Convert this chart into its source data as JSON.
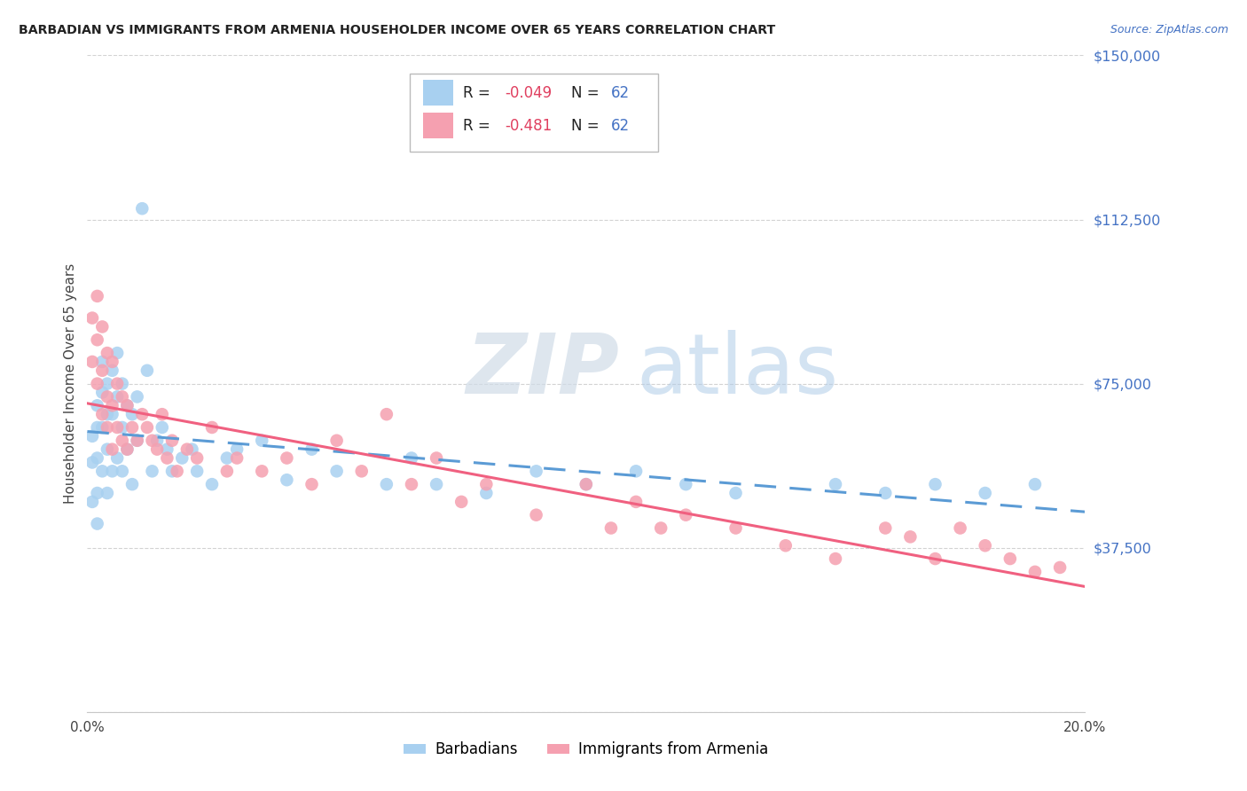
{
  "title": "BARBADIAN VS IMMIGRANTS FROM ARMENIA HOUSEHOLDER INCOME OVER 65 YEARS CORRELATION CHART",
  "source": "Source: ZipAtlas.com",
  "ylabel": "Householder Income Over 65 years",
  "xlim": [
    0.0,
    0.2
  ],
  "ylim": [
    0,
    150000
  ],
  "yticks": [
    0,
    37500,
    75000,
    112500,
    150000
  ],
  "ytick_labels": [
    "",
    "$37,500",
    "$75,000",
    "$112,500",
    "$150,000"
  ],
  "barbadian_color": "#a8d0f0",
  "armenia_color": "#f5a0b0",
  "barbadian_line_color": "#5b9bd5",
  "armenia_line_color": "#f06080",
  "axis_color": "#4472c4",
  "background_color": "#ffffff",
  "grid_color": "#c8c8c8",
  "watermark_zip": "ZIP",
  "watermark_atlas": "atlas",
  "barbadian_x": [
    0.001,
    0.001,
    0.001,
    0.002,
    0.002,
    0.002,
    0.002,
    0.002,
    0.003,
    0.003,
    0.003,
    0.003,
    0.004,
    0.004,
    0.004,
    0.004,
    0.005,
    0.005,
    0.005,
    0.006,
    0.006,
    0.006,
    0.007,
    0.007,
    0.007,
    0.008,
    0.008,
    0.009,
    0.009,
    0.01,
    0.01,
    0.011,
    0.012,
    0.013,
    0.014,
    0.015,
    0.016,
    0.017,
    0.019,
    0.021,
    0.022,
    0.025,
    0.028,
    0.03,
    0.035,
    0.04,
    0.045,
    0.05,
    0.06,
    0.065,
    0.07,
    0.08,
    0.09,
    0.1,
    0.11,
    0.12,
    0.13,
    0.15,
    0.16,
    0.17,
    0.18,
    0.19
  ],
  "barbadian_y": [
    63000,
    57000,
    48000,
    70000,
    65000,
    58000,
    50000,
    43000,
    80000,
    73000,
    65000,
    55000,
    75000,
    68000,
    60000,
    50000,
    78000,
    68000,
    55000,
    82000,
    72000,
    58000,
    75000,
    65000,
    55000,
    70000,
    60000,
    68000,
    52000,
    72000,
    62000,
    115000,
    78000,
    55000,
    62000,
    65000,
    60000,
    55000,
    58000,
    60000,
    55000,
    52000,
    58000,
    60000,
    62000,
    53000,
    60000,
    55000,
    52000,
    58000,
    52000,
    50000,
    55000,
    52000,
    55000,
    52000,
    50000,
    52000,
    50000,
    52000,
    50000,
    52000
  ],
  "armenia_x": [
    0.001,
    0.001,
    0.002,
    0.002,
    0.002,
    0.003,
    0.003,
    0.003,
    0.004,
    0.004,
    0.004,
    0.005,
    0.005,
    0.005,
    0.006,
    0.006,
    0.007,
    0.007,
    0.008,
    0.008,
    0.009,
    0.01,
    0.011,
    0.012,
    0.013,
    0.014,
    0.015,
    0.016,
    0.017,
    0.018,
    0.02,
    0.022,
    0.025,
    0.028,
    0.03,
    0.035,
    0.04,
    0.045,
    0.05,
    0.055,
    0.06,
    0.065,
    0.07,
    0.075,
    0.08,
    0.09,
    0.1,
    0.105,
    0.11,
    0.115,
    0.12,
    0.13,
    0.14,
    0.15,
    0.16,
    0.165,
    0.17,
    0.175,
    0.18,
    0.185,
    0.19,
    0.195
  ],
  "armenia_y": [
    90000,
    80000,
    95000,
    85000,
    75000,
    88000,
    78000,
    68000,
    82000,
    72000,
    65000,
    80000,
    70000,
    60000,
    75000,
    65000,
    72000,
    62000,
    70000,
    60000,
    65000,
    62000,
    68000,
    65000,
    62000,
    60000,
    68000,
    58000,
    62000,
    55000,
    60000,
    58000,
    65000,
    55000,
    58000,
    55000,
    58000,
    52000,
    62000,
    55000,
    68000,
    52000,
    58000,
    48000,
    52000,
    45000,
    52000,
    42000,
    48000,
    42000,
    45000,
    42000,
    38000,
    35000,
    42000,
    40000,
    35000,
    42000,
    38000,
    35000,
    32000,
    33000
  ]
}
